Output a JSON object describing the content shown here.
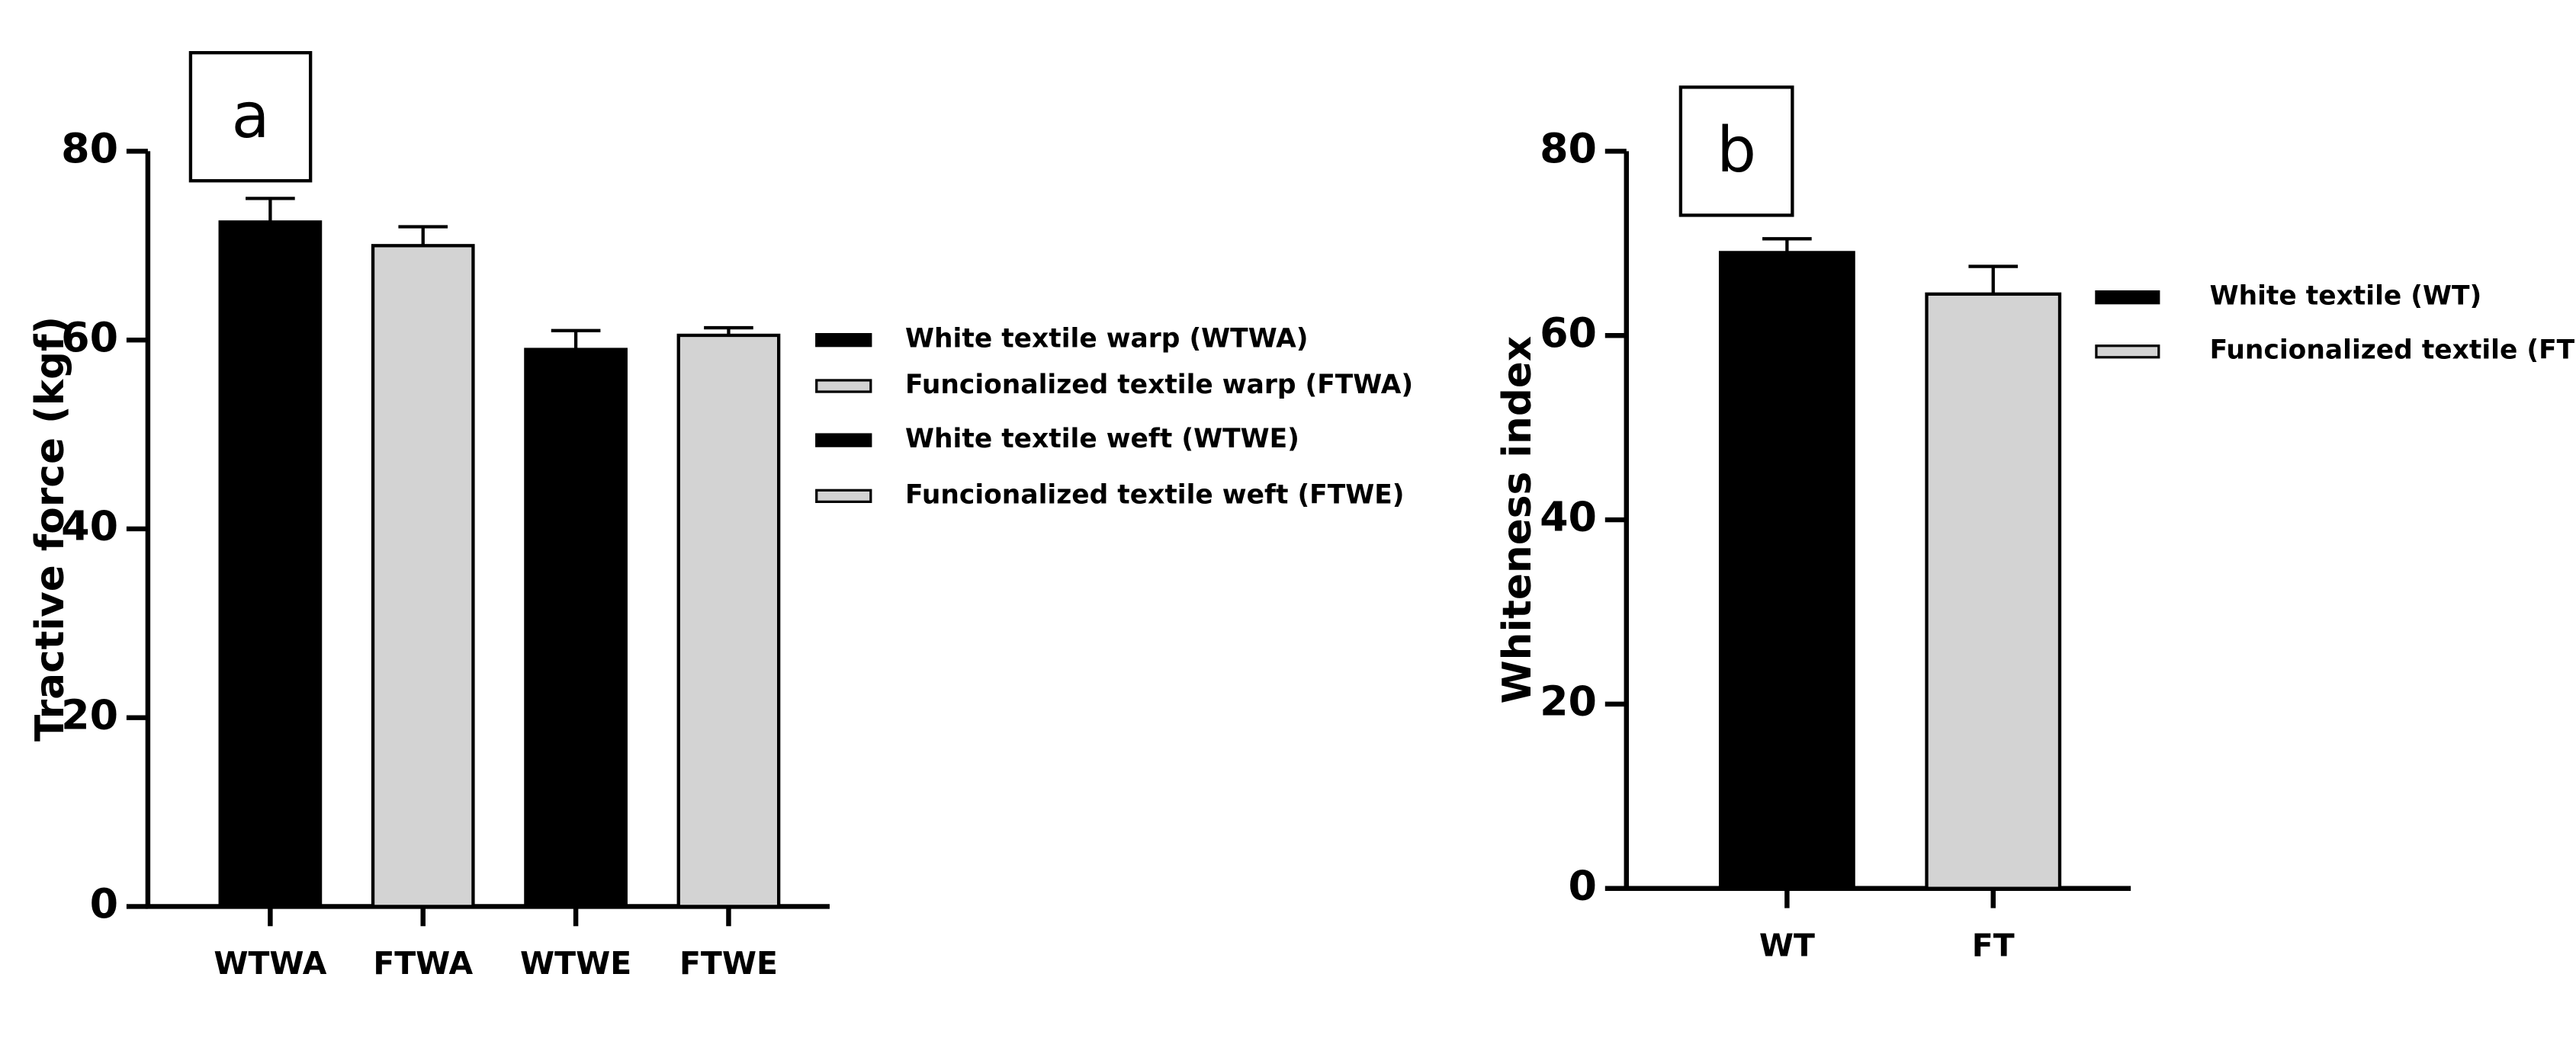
{
  "chart_data": [
    {
      "type": "bar",
      "panel_label": "a",
      "y_label": "Tractive force (kgf)",
      "categories": [
        "WTWA",
        "FTWA",
        "WTWE",
        "FTWE"
      ],
      "values": [
        72.5,
        70,
        59,
        60.5
      ],
      "errors": [
        2.5,
        2,
        2,
        0.8
      ],
      "colors": [
        "#000000",
        "#d3d3d3",
        "#000000",
        "#d3d3d3"
      ],
      "legend_labels": [
        "White textile warp (WTWA)",
        "Funcionalized textile warp (FTWA)",
        "White textile weft (WTWE)",
        "Funcionalized textile weft (FTWE)"
      ],
      "ylim": [
        0,
        80
      ],
      "yticks": [
        0,
        20,
        40,
        60,
        80
      ]
    },
    {
      "type": "bar",
      "panel_label": "b",
      "y_label": "Whiteness index",
      "categories": [
        "WT",
        "FT"
      ],
      "values": [
        69,
        64.5
      ],
      "errors": [
        1.5,
        3
      ],
      "colors": [
        "#000000",
        "#d3d3d3"
      ],
      "legend_labels": [
        "White textile (WT)",
        "Funcionalized textile (FT)"
      ],
      "ylim": [
        0,
        80
      ],
      "yticks": [
        0,
        20,
        40,
        60,
        80
      ]
    }
  ]
}
